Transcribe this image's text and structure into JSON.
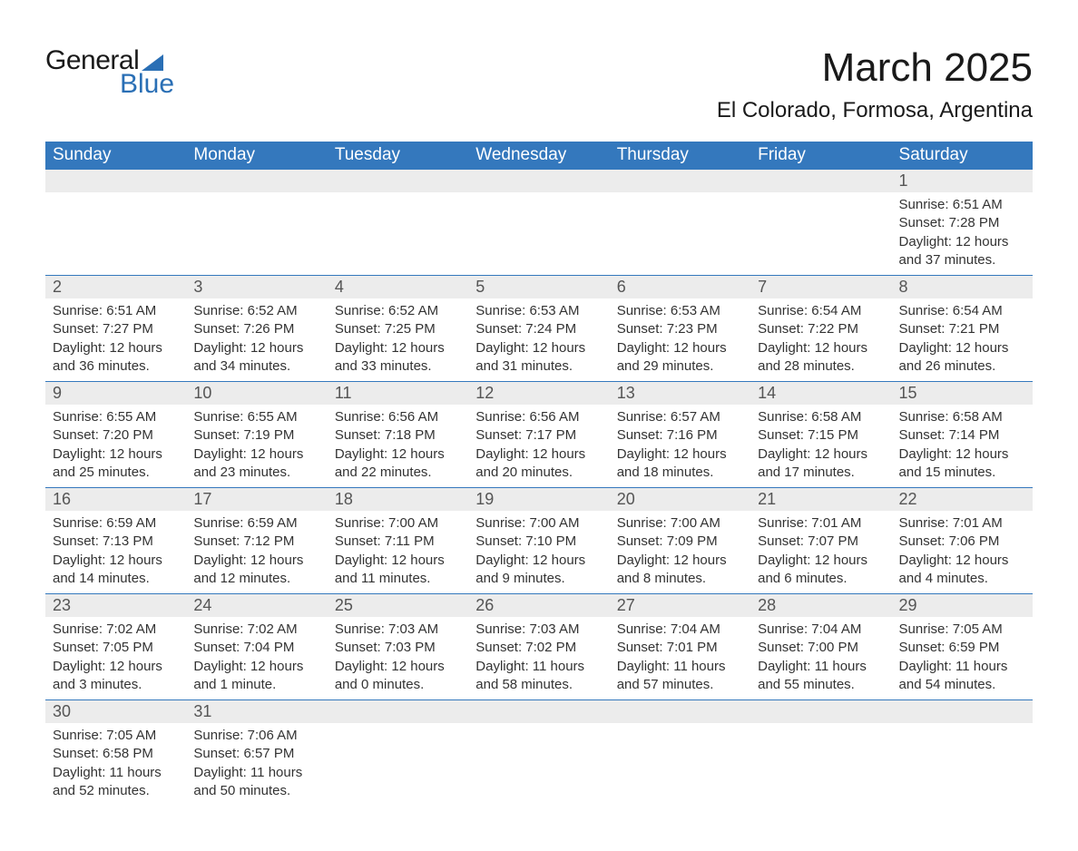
{
  "logo": {
    "text1": "General",
    "text2": "Blue"
  },
  "title": "March 2025",
  "location": "El Colorado, Formosa, Argentina",
  "colors": {
    "header_bg": "#3478bd",
    "header_text": "#ffffff",
    "daynum_bg": "#ececec",
    "daynum_text": "#555555",
    "body_text": "#333333",
    "logo_accent": "#2a6fb5",
    "row_border": "#3478bd",
    "page_bg": "#ffffff"
  },
  "typography": {
    "title_fontsize": 44,
    "location_fontsize": 24,
    "header_fontsize": 19,
    "daynum_fontsize": 18,
    "data_fontsize": 15
  },
  "weekdays": [
    "Sunday",
    "Monday",
    "Tuesday",
    "Wednesday",
    "Thursday",
    "Friday",
    "Saturday"
  ],
  "labels": {
    "sunrise": "Sunrise:",
    "sunset": "Sunset:",
    "daylight": "Daylight:"
  },
  "weeks": [
    [
      null,
      null,
      null,
      null,
      null,
      null,
      {
        "day": "1",
        "sunrise": "6:51 AM",
        "sunset": "7:28 PM",
        "daylight": "12 hours and 37 minutes."
      }
    ],
    [
      {
        "day": "2",
        "sunrise": "6:51 AM",
        "sunset": "7:27 PM",
        "daylight": "12 hours and 36 minutes."
      },
      {
        "day": "3",
        "sunrise": "6:52 AM",
        "sunset": "7:26 PM",
        "daylight": "12 hours and 34 minutes."
      },
      {
        "day": "4",
        "sunrise": "6:52 AM",
        "sunset": "7:25 PM",
        "daylight": "12 hours and 33 minutes."
      },
      {
        "day": "5",
        "sunrise": "6:53 AM",
        "sunset": "7:24 PM",
        "daylight": "12 hours and 31 minutes."
      },
      {
        "day": "6",
        "sunrise": "6:53 AM",
        "sunset": "7:23 PM",
        "daylight": "12 hours and 29 minutes."
      },
      {
        "day": "7",
        "sunrise": "6:54 AM",
        "sunset": "7:22 PM",
        "daylight": "12 hours and 28 minutes."
      },
      {
        "day": "8",
        "sunrise": "6:54 AM",
        "sunset": "7:21 PM",
        "daylight": "12 hours and 26 minutes."
      }
    ],
    [
      {
        "day": "9",
        "sunrise": "6:55 AM",
        "sunset": "7:20 PM",
        "daylight": "12 hours and 25 minutes."
      },
      {
        "day": "10",
        "sunrise": "6:55 AM",
        "sunset": "7:19 PM",
        "daylight": "12 hours and 23 minutes."
      },
      {
        "day": "11",
        "sunrise": "6:56 AM",
        "sunset": "7:18 PM",
        "daylight": "12 hours and 22 minutes."
      },
      {
        "day": "12",
        "sunrise": "6:56 AM",
        "sunset": "7:17 PM",
        "daylight": "12 hours and 20 minutes."
      },
      {
        "day": "13",
        "sunrise": "6:57 AM",
        "sunset": "7:16 PM",
        "daylight": "12 hours and 18 minutes."
      },
      {
        "day": "14",
        "sunrise": "6:58 AM",
        "sunset": "7:15 PM",
        "daylight": "12 hours and 17 minutes."
      },
      {
        "day": "15",
        "sunrise": "6:58 AM",
        "sunset": "7:14 PM",
        "daylight": "12 hours and 15 minutes."
      }
    ],
    [
      {
        "day": "16",
        "sunrise": "6:59 AM",
        "sunset": "7:13 PM",
        "daylight": "12 hours and 14 minutes."
      },
      {
        "day": "17",
        "sunrise": "6:59 AM",
        "sunset": "7:12 PM",
        "daylight": "12 hours and 12 minutes."
      },
      {
        "day": "18",
        "sunrise": "7:00 AM",
        "sunset": "7:11 PM",
        "daylight": "12 hours and 11 minutes."
      },
      {
        "day": "19",
        "sunrise": "7:00 AM",
        "sunset": "7:10 PM",
        "daylight": "12 hours and 9 minutes."
      },
      {
        "day": "20",
        "sunrise": "7:00 AM",
        "sunset": "7:09 PM",
        "daylight": "12 hours and 8 minutes."
      },
      {
        "day": "21",
        "sunrise": "7:01 AM",
        "sunset": "7:07 PM",
        "daylight": "12 hours and 6 minutes."
      },
      {
        "day": "22",
        "sunrise": "7:01 AM",
        "sunset": "7:06 PM",
        "daylight": "12 hours and 4 minutes."
      }
    ],
    [
      {
        "day": "23",
        "sunrise": "7:02 AM",
        "sunset": "7:05 PM",
        "daylight": "12 hours and 3 minutes."
      },
      {
        "day": "24",
        "sunrise": "7:02 AM",
        "sunset": "7:04 PM",
        "daylight": "12 hours and 1 minute."
      },
      {
        "day": "25",
        "sunrise": "7:03 AM",
        "sunset": "7:03 PM",
        "daylight": "12 hours and 0 minutes."
      },
      {
        "day": "26",
        "sunrise": "7:03 AM",
        "sunset": "7:02 PM",
        "daylight": "11 hours and 58 minutes."
      },
      {
        "day": "27",
        "sunrise": "7:04 AM",
        "sunset": "7:01 PM",
        "daylight": "11 hours and 57 minutes."
      },
      {
        "day": "28",
        "sunrise": "7:04 AM",
        "sunset": "7:00 PM",
        "daylight": "11 hours and 55 minutes."
      },
      {
        "day": "29",
        "sunrise": "7:05 AM",
        "sunset": "6:59 PM",
        "daylight": "11 hours and 54 minutes."
      }
    ],
    [
      {
        "day": "30",
        "sunrise": "7:05 AM",
        "sunset": "6:58 PM",
        "daylight": "11 hours and 52 minutes."
      },
      {
        "day": "31",
        "sunrise": "7:06 AM",
        "sunset": "6:57 PM",
        "daylight": "11 hours and 50 minutes."
      },
      null,
      null,
      null,
      null,
      null
    ]
  ]
}
